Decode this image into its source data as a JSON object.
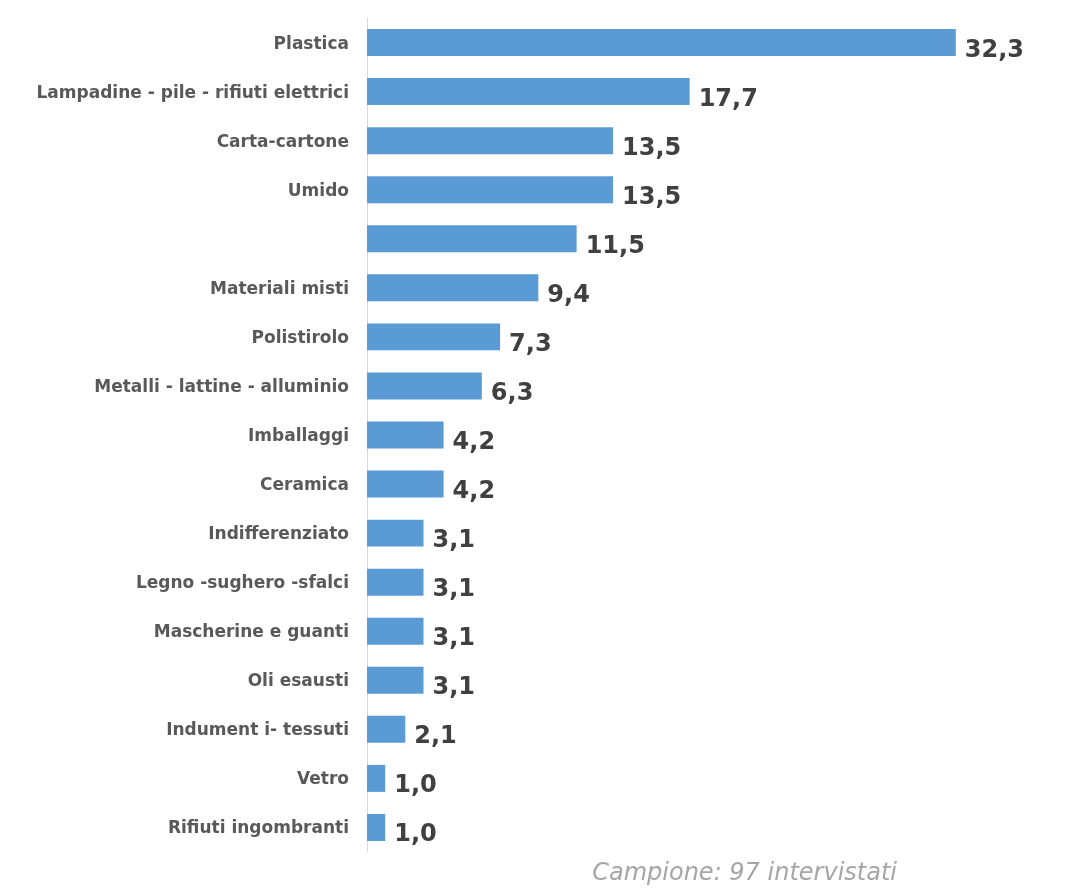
{
  "chart_data": {
    "type": "bar",
    "orientation": "horizontal",
    "categories": [
      "Plastica",
      "Lampadine - pile - rifiuti elettrici",
      "Carta-cartone",
      "Umido",
      null,
      "Materiali misti",
      "Polistirolo",
      "Metalli - lattine - alluminio",
      "Imballaggi",
      "Ceramica",
      "Indifferenziato",
      "Legno -sughero -sfalci",
      "Mascherine e guanti",
      "Oli esausti",
      "Indument i- tessuti",
      "Vetro",
      "Rifiuti ingombranti"
    ],
    "values": [
      32.3,
      17.7,
      13.5,
      13.5,
      11.5,
      9.4,
      7.3,
      6.3,
      4.2,
      4.2,
      3.1,
      3.1,
      3.1,
      3.1,
      2.1,
      1.0,
      1.0
    ],
    "value_labels": [
      "32,3",
      "17,7",
      "13,5",
      "13,5",
      "11,5",
      "9,4",
      "7,3",
      "6,3",
      "4,2",
      "4,2",
      "3,1",
      "3,1",
      "3,1",
      "3,1",
      "2,1",
      "1,0",
      "1,0"
    ],
    "color": "#5b9bd5",
    "annotations": [
      "Campione: 97 intervistati"
    ]
  }
}
